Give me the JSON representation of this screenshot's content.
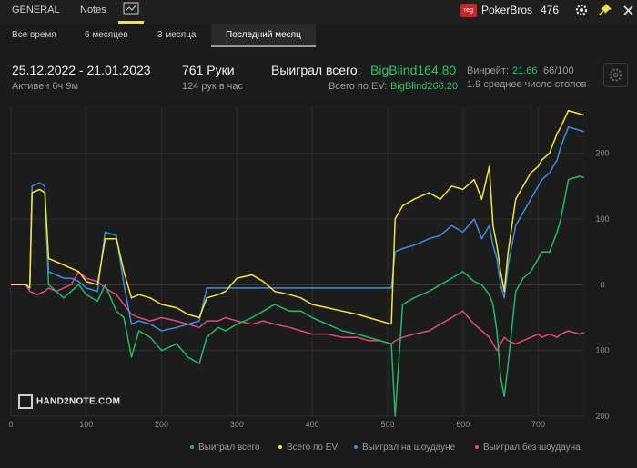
{
  "topbar": {
    "tabs": [
      "GENERAL",
      "Notes"
    ],
    "badge": "reg",
    "site": "PokerBros",
    "count": "476"
  },
  "periods": [
    "Все время",
    "6 месяцев",
    "3 месяца",
    "Последний месяц"
  ],
  "stats": {
    "date_range": "25.12.2022 - 21.01.2023",
    "active": "Активен 6ч 9м",
    "hands": "761 Руки",
    "hands_per_hour": "124 рук в час",
    "won_label": "Выиграл всего:",
    "won_value": "BigBlind164.80",
    "ev_label": "Всего по EV:",
    "ev_value": "BigBlind266.20",
    "winrate_label": "Винрейт:",
    "winrate_value": "21.66",
    "winrate_rest": "66/100",
    "tables": "1.9 среднее число столов"
  },
  "logo": "HAND2NOTE.COM",
  "colors": {
    "won": "#25b86a",
    "ev": "#f3e53c",
    "showdown": "#3f8ee0",
    "nonshowdown": "#e04a7d",
    "accent": "#f0e14a"
  },
  "chart_data": {
    "type": "line",
    "xlim": [
      0,
      761
    ],
    "ylim": [
      -200,
      270
    ],
    "x_ticks": [
      0,
      100,
      200,
      300,
      400,
      500,
      600,
      700
    ],
    "y_ticks": [
      200,
      100,
      0,
      -100,
      -200
    ],
    "y_tick_labels": [
      "200",
      "100",
      "0",
      "100",
      "200"
    ],
    "series": [
      {
        "name": "Выиграл всего",
        "color": "#25b86a",
        "points": [
          [
            0,
            0
          ],
          [
            20,
            0
          ],
          [
            25,
            -5
          ],
          [
            28,
            140
          ],
          [
            38,
            145
          ],
          [
            45,
            140
          ],
          [
            50,
            0
          ],
          [
            60,
            -10
          ],
          [
            70,
            -20
          ],
          [
            80,
            -10
          ],
          [
            90,
            0
          ],
          [
            100,
            -15
          ],
          [
            115,
            -25
          ],
          [
            125,
            0
          ],
          [
            140,
            -40
          ],
          [
            150,
            -50
          ],
          [
            160,
            -110
          ],
          [
            170,
            -70
          ],
          [
            185,
            -80
          ],
          [
            200,
            -100
          ],
          [
            220,
            -90
          ],
          [
            235,
            -110
          ],
          [
            250,
            -120
          ],
          [
            260,
            -80
          ],
          [
            275,
            -65
          ],
          [
            285,
            -70
          ],
          [
            300,
            -60
          ],
          [
            320,
            -50
          ],
          [
            335,
            -40
          ],
          [
            350,
            -30
          ],
          [
            370,
            -40
          ],
          [
            385,
            -40
          ],
          [
            400,
            -50
          ],
          [
            420,
            -60
          ],
          [
            440,
            -70
          ],
          [
            460,
            -75
          ],
          [
            475,
            -80
          ],
          [
            490,
            -85
          ],
          [
            505,
            -90
          ],
          [
            510,
            -200
          ],
          [
            520,
            -30
          ],
          [
            535,
            -20
          ],
          [
            555,
            -10
          ],
          [
            570,
            0
          ],
          [
            585,
            10
          ],
          [
            600,
            20
          ],
          [
            615,
            5
          ],
          [
            625,
            0
          ],
          [
            635,
            -15
          ],
          [
            640,
            -30
          ],
          [
            645,
            -70
          ],
          [
            650,
            -140
          ],
          [
            655,
            -170
          ],
          [
            660,
            -120
          ],
          [
            670,
            -10
          ],
          [
            680,
            10
          ],
          [
            690,
            20
          ],
          [
            700,
            40
          ],
          [
            705,
            50
          ],
          [
            715,
            50
          ],
          [
            725,
            80
          ],
          [
            730,
            100
          ],
          [
            740,
            160
          ],
          [
            755,
            165
          ],
          [
            761,
            163
          ]
        ]
      },
      {
        "name": "Всего по EV",
        "color": "#f3e53c",
        "points": [
          [
            0,
            0
          ],
          [
            20,
            0
          ],
          [
            25,
            -5
          ],
          [
            28,
            140
          ],
          [
            38,
            145
          ],
          [
            45,
            140
          ],
          [
            50,
            40
          ],
          [
            60,
            35
          ],
          [
            70,
            30
          ],
          [
            80,
            25
          ],
          [
            90,
            20
          ],
          [
            100,
            5
          ],
          [
            115,
            0
          ],
          [
            125,
            70
          ],
          [
            140,
            70
          ],
          [
            150,
            20
          ],
          [
            160,
            -20
          ],
          [
            170,
            -15
          ],
          [
            185,
            -20
          ],
          [
            200,
            -30
          ],
          [
            220,
            -35
          ],
          [
            235,
            -45
          ],
          [
            250,
            -50
          ],
          [
            260,
            -20
          ],
          [
            275,
            -15
          ],
          [
            285,
            -10
          ],
          [
            300,
            10
          ],
          [
            320,
            15
          ],
          [
            335,
            5
          ],
          [
            350,
            -10
          ],
          [
            370,
            -15
          ],
          [
            385,
            -20
          ],
          [
            400,
            -30
          ],
          [
            420,
            -35
          ],
          [
            440,
            -40
          ],
          [
            460,
            -45
          ],
          [
            475,
            -50
          ],
          [
            490,
            -55
          ],
          [
            505,
            -60
          ],
          [
            510,
            100
          ],
          [
            520,
            120
          ],
          [
            535,
            130
          ],
          [
            555,
            140
          ],
          [
            570,
            130
          ],
          [
            585,
            150
          ],
          [
            600,
            145
          ],
          [
            615,
            160
          ],
          [
            625,
            130
          ],
          [
            635,
            180
          ],
          [
            640,
            90
          ],
          [
            645,
            60
          ],
          [
            650,
            20
          ],
          [
            655,
            -10
          ],
          [
            660,
            50
          ],
          [
            670,
            130
          ],
          [
            680,
            150
          ],
          [
            690,
            170
          ],
          [
            700,
            180
          ],
          [
            705,
            190
          ],
          [
            715,
            200
          ],
          [
            725,
            230
          ],
          [
            730,
            240
          ],
          [
            740,
            265
          ],
          [
            755,
            260
          ],
          [
            761,
            258
          ]
        ]
      },
      {
        "name": "Выиграл на шоудауне",
        "color": "#3f8ee0",
        "points": [
          [
            0,
            0
          ],
          [
            20,
            0
          ],
          [
            25,
            -5
          ],
          [
            28,
            150
          ],
          [
            38,
            155
          ],
          [
            45,
            150
          ],
          [
            50,
            20
          ],
          [
            60,
            15
          ],
          [
            70,
            10
          ],
          [
            80,
            10
          ],
          [
            90,
            5
          ],
          [
            100,
            -5
          ],
          [
            115,
            -10
          ],
          [
            125,
            80
          ],
          [
            140,
            75
          ],
          [
            150,
            0
          ],
          [
            160,
            -60
          ],
          [
            170,
            -55
          ],
          [
            185,
            -60
          ],
          [
            200,
            -70
          ],
          [
            220,
            -65
          ],
          [
            235,
            -60
          ],
          [
            250,
            -55
          ],
          [
            260,
            -5
          ],
          [
            275,
            -5
          ],
          [
            285,
            -5
          ],
          [
            300,
            -5
          ],
          [
            320,
            -5
          ],
          [
            335,
            -5
          ],
          [
            350,
            -5
          ],
          [
            370,
            -5
          ],
          [
            385,
            -5
          ],
          [
            400,
            -5
          ],
          [
            420,
            -5
          ],
          [
            440,
            -5
          ],
          [
            460,
            -5
          ],
          [
            475,
            -5
          ],
          [
            490,
            -5
          ],
          [
            505,
            -5
          ],
          [
            510,
            50
          ],
          [
            520,
            55
          ],
          [
            535,
            60
          ],
          [
            555,
            70
          ],
          [
            570,
            75
          ],
          [
            585,
            90
          ],
          [
            600,
            80
          ],
          [
            615,
            100
          ],
          [
            625,
            70
          ],
          [
            635,
            90
          ],
          [
            640,
            60
          ],
          [
            645,
            40
          ],
          [
            650,
            0
          ],
          [
            655,
            -20
          ],
          [
            660,
            30
          ],
          [
            670,
            90
          ],
          [
            680,
            110
          ],
          [
            690,
            130
          ],
          [
            700,
            150
          ],
          [
            705,
            160
          ],
          [
            715,
            170
          ],
          [
            725,
            190
          ],
          [
            730,
            210
          ],
          [
            740,
            240
          ],
          [
            755,
            235
          ],
          [
            761,
            233
          ]
        ]
      },
      {
        "name": "Выиграл без шоудауна",
        "color": "#e04a7d",
        "points": [
          [
            0,
            0
          ],
          [
            20,
            0
          ],
          [
            25,
            -10
          ],
          [
            35,
            -15
          ],
          [
            45,
            -10
          ],
          [
            50,
            -5
          ],
          [
            60,
            -10
          ],
          [
            70,
            -5
          ],
          [
            80,
            0
          ],
          [
            90,
            20
          ],
          [
            100,
            10
          ],
          [
            115,
            5
          ],
          [
            125,
            -5
          ],
          [
            140,
            -15
          ],
          [
            150,
            -30
          ],
          [
            160,
            -45
          ],
          [
            170,
            -50
          ],
          [
            185,
            -55
          ],
          [
            200,
            -50
          ],
          [
            220,
            -55
          ],
          [
            235,
            -60
          ],
          [
            250,
            -65
          ],
          [
            260,
            -55
          ],
          [
            275,
            -55
          ],
          [
            285,
            -50
          ],
          [
            300,
            -55
          ],
          [
            320,
            -60
          ],
          [
            335,
            -55
          ],
          [
            350,
            -60
          ],
          [
            370,
            -65
          ],
          [
            385,
            -70
          ],
          [
            400,
            -75
          ],
          [
            420,
            -75
          ],
          [
            440,
            -80
          ],
          [
            460,
            -80
          ],
          [
            475,
            -85
          ],
          [
            490,
            -85
          ],
          [
            505,
            -90
          ],
          [
            510,
            -85
          ],
          [
            520,
            -80
          ],
          [
            535,
            -75
          ],
          [
            555,
            -70
          ],
          [
            570,
            -60
          ],
          [
            585,
            -50
          ],
          [
            600,
            -40
          ],
          [
            615,
            -60
          ],
          [
            625,
            -70
          ],
          [
            635,
            -80
          ],
          [
            640,
            -90
          ],
          [
            645,
            -100
          ],
          [
            650,
            -90
          ],
          [
            655,
            -80
          ],
          [
            660,
            -85
          ],
          [
            670,
            -90
          ],
          [
            680,
            -85
          ],
          [
            690,
            -80
          ],
          [
            700,
            -75
          ],
          [
            705,
            -80
          ],
          [
            715,
            -75
          ],
          [
            725,
            -80
          ],
          [
            730,
            -75
          ],
          [
            740,
            -70
          ],
          [
            755,
            -75
          ],
          [
            761,
            -73
          ]
        ]
      }
    ]
  }
}
